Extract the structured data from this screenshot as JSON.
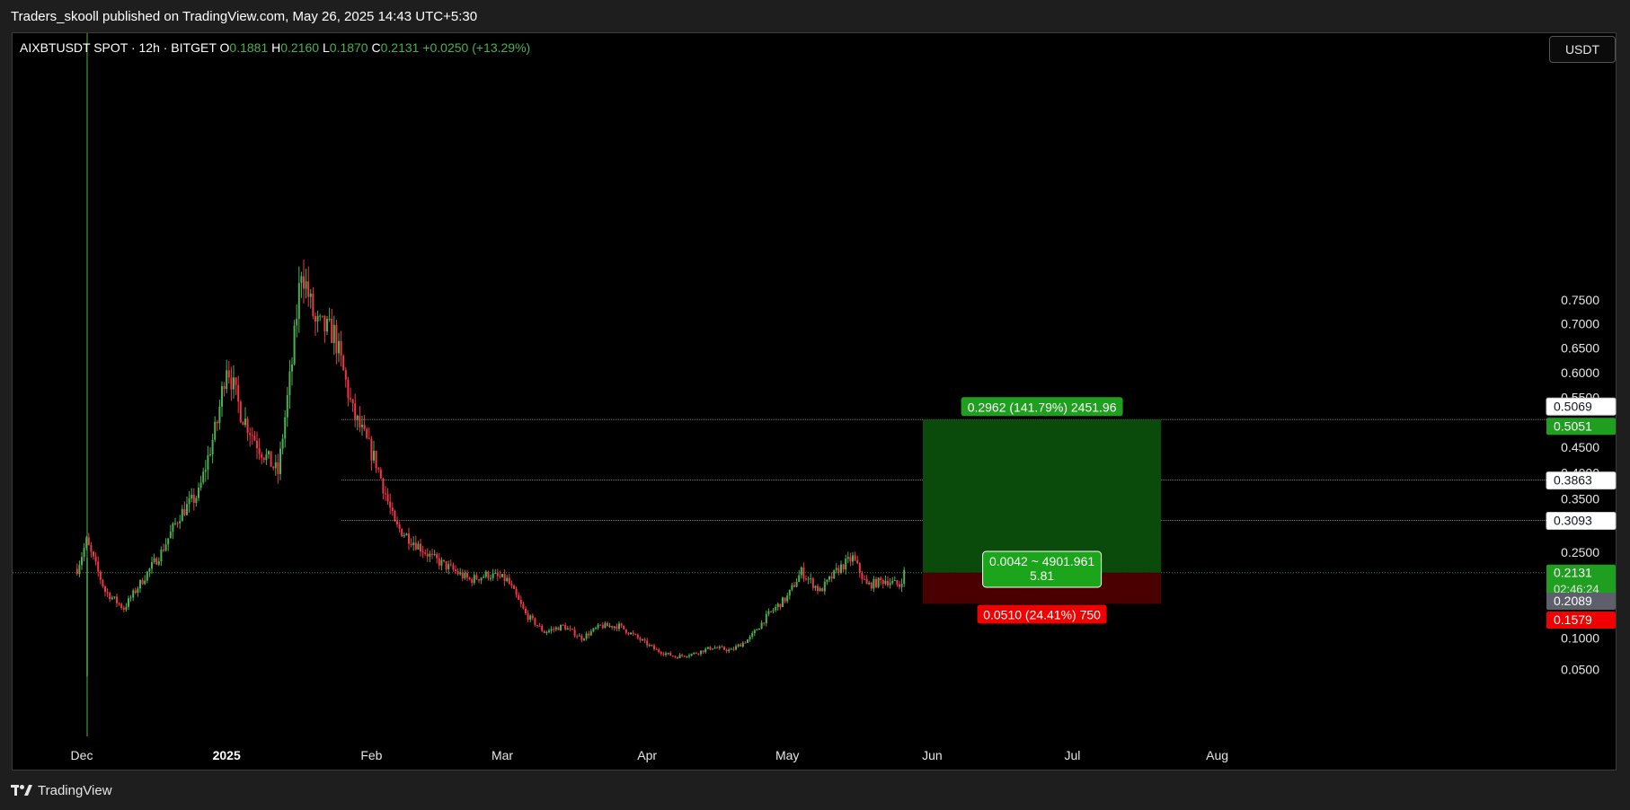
{
  "header": {
    "publisher_text": "Traders_skooll published on TradingView.com, May 26, 2025 14:43 UTC+5:30"
  },
  "footer": {
    "brand": "TradingView"
  },
  "symbol_bar": {
    "symbol": "AIXBTUSDT SPOT · 12h · BITGET",
    "o_label": "O",
    "o_value": "0.1881",
    "h_label": "H",
    "h_value": "0.2160",
    "l_label": "L",
    "l_value": "0.1870",
    "c_label": "C",
    "c_value": "0.2131",
    "change": "+0.0250 (+13.29%)"
  },
  "currency_button": "USDT",
  "colors": {
    "up": "#26a69a",
    "down": "#ef5350",
    "profit_zone": "#0a4a0a",
    "loss_zone": "#4a0000",
    "label_green": "#1f9e1f",
    "label_red": "#f00000"
  },
  "chart_data": {
    "type": "candlestick",
    "title": "AIXBTUSDT SPOT · 12h · BITGET",
    "y_ticks": [
      "0.7500",
      "0.7000",
      "0.6500",
      "0.6000",
      "0.5500",
      "0.4500",
      "0.4000",
      "0.3500",
      "0.3000",
      "0.2500",
      "0.1000",
      "0.0500"
    ],
    "x_ticks": [
      "Dec",
      "2025",
      "Feb",
      "Mar",
      "Apr",
      "May",
      "Jun",
      "Jul",
      "Aug"
    ],
    "ylim": [
      0.0,
      0.8
    ],
    "price_path": [
      {
        "date": "2024-11-30",
        "price": 0.22
      },
      {
        "date": "2024-12-02",
        "price": 0.27
      },
      {
        "date": "2024-12-06",
        "price": 0.18
      },
      {
        "date": "2024-12-10",
        "price": 0.15
      },
      {
        "date": "2024-12-14",
        "price": 0.2
      },
      {
        "date": "2024-12-18",
        "price": 0.25
      },
      {
        "date": "2024-12-22",
        "price": 0.32
      },
      {
        "date": "2024-12-26",
        "price": 0.36
      },
      {
        "date": "2024-12-30",
        "price": 0.5
      },
      {
        "date": "2025-01-01",
        "price": 0.62
      },
      {
        "date": "2025-01-04",
        "price": 0.52
      },
      {
        "date": "2025-01-08",
        "price": 0.45
      },
      {
        "date": "2025-01-12",
        "price": 0.4
      },
      {
        "date": "2025-01-15",
        "price": 0.62
      },
      {
        "date": "2025-01-17",
        "price": 0.82
      },
      {
        "date": "2025-01-20",
        "price": 0.7
      },
      {
        "date": "2025-01-24",
        "price": 0.68
      },
      {
        "date": "2025-01-28",
        "price": 0.52
      },
      {
        "date": "2025-02-02",
        "price": 0.42
      },
      {
        "date": "2025-02-06",
        "price": 0.3
      },
      {
        "date": "2025-02-10",
        "price": 0.27
      },
      {
        "date": "2025-02-14",
        "price": 0.24
      },
      {
        "date": "2025-02-18",
        "price": 0.22
      },
      {
        "date": "2025-02-22",
        "price": 0.2
      },
      {
        "date": "2025-02-26",
        "price": 0.21
      },
      {
        "date": "2025-03-02",
        "price": 0.2
      },
      {
        "date": "2025-03-06",
        "price": 0.14
      },
      {
        "date": "2025-03-10",
        "price": 0.11
      },
      {
        "date": "2025-03-14",
        "price": 0.12
      },
      {
        "date": "2025-03-18",
        "price": 0.1
      },
      {
        "date": "2025-03-22",
        "price": 0.12
      },
      {
        "date": "2025-03-26",
        "price": 0.12
      },
      {
        "date": "2025-03-30",
        "price": 0.1
      },
      {
        "date": "2025-04-03",
        "price": 0.08
      },
      {
        "date": "2025-04-07",
        "price": 0.07
      },
      {
        "date": "2025-04-11",
        "price": 0.075
      },
      {
        "date": "2025-04-15",
        "price": 0.085
      },
      {
        "date": "2025-04-19",
        "price": 0.08
      },
      {
        "date": "2025-04-23",
        "price": 0.1
      },
      {
        "date": "2025-04-27",
        "price": 0.14
      },
      {
        "date": "2025-05-01",
        "price": 0.17
      },
      {
        "date": "2025-05-04",
        "price": 0.215
      },
      {
        "date": "2025-05-08",
        "price": 0.18
      },
      {
        "date": "2025-05-12",
        "price": 0.22
      },
      {
        "date": "2025-05-15",
        "price": 0.24
      },
      {
        "date": "2025-05-18",
        "price": 0.19
      },
      {
        "date": "2025-05-22",
        "price": 0.2
      },
      {
        "date": "2025-05-25",
        "price": 0.19
      },
      {
        "date": "2025-05-26",
        "price": 0.2131
      }
    ],
    "horizontal_lines": [
      0.5051,
      0.3863,
      0.3093,
      0.2131
    ],
    "position": {
      "start_date": "2025-05-30",
      "end_date": "2025-07-20",
      "entry": 0.2089,
      "target": 0.5051,
      "stop": 0.1579,
      "target_label": "0.2962 (141.79%) 2451.96",
      "stop_label": "0.0510 (24.41%) 750",
      "center_label_1": "0.0042 ~ 4901.961",
      "center_label_2": "5.81"
    },
    "price_labels": [
      {
        "text": "0.5069",
        "kind": "white",
        "price": 0.5069
      },
      {
        "text": "0.5051",
        "kind": "green",
        "price": 0.5051
      },
      {
        "text": "0.3863",
        "kind": "white",
        "price": 0.3863
      },
      {
        "text": "0.3093",
        "kind": "white",
        "price": 0.3093
      },
      {
        "text": "0.2131",
        "kind": "green",
        "price": 0.2131
      },
      {
        "text": "0.2089",
        "kind": "grey",
        "price": 0.2089
      },
      {
        "text": "0.1579",
        "kind": "red",
        "price": 0.1579
      }
    ],
    "countdown": "02:46:24"
  }
}
